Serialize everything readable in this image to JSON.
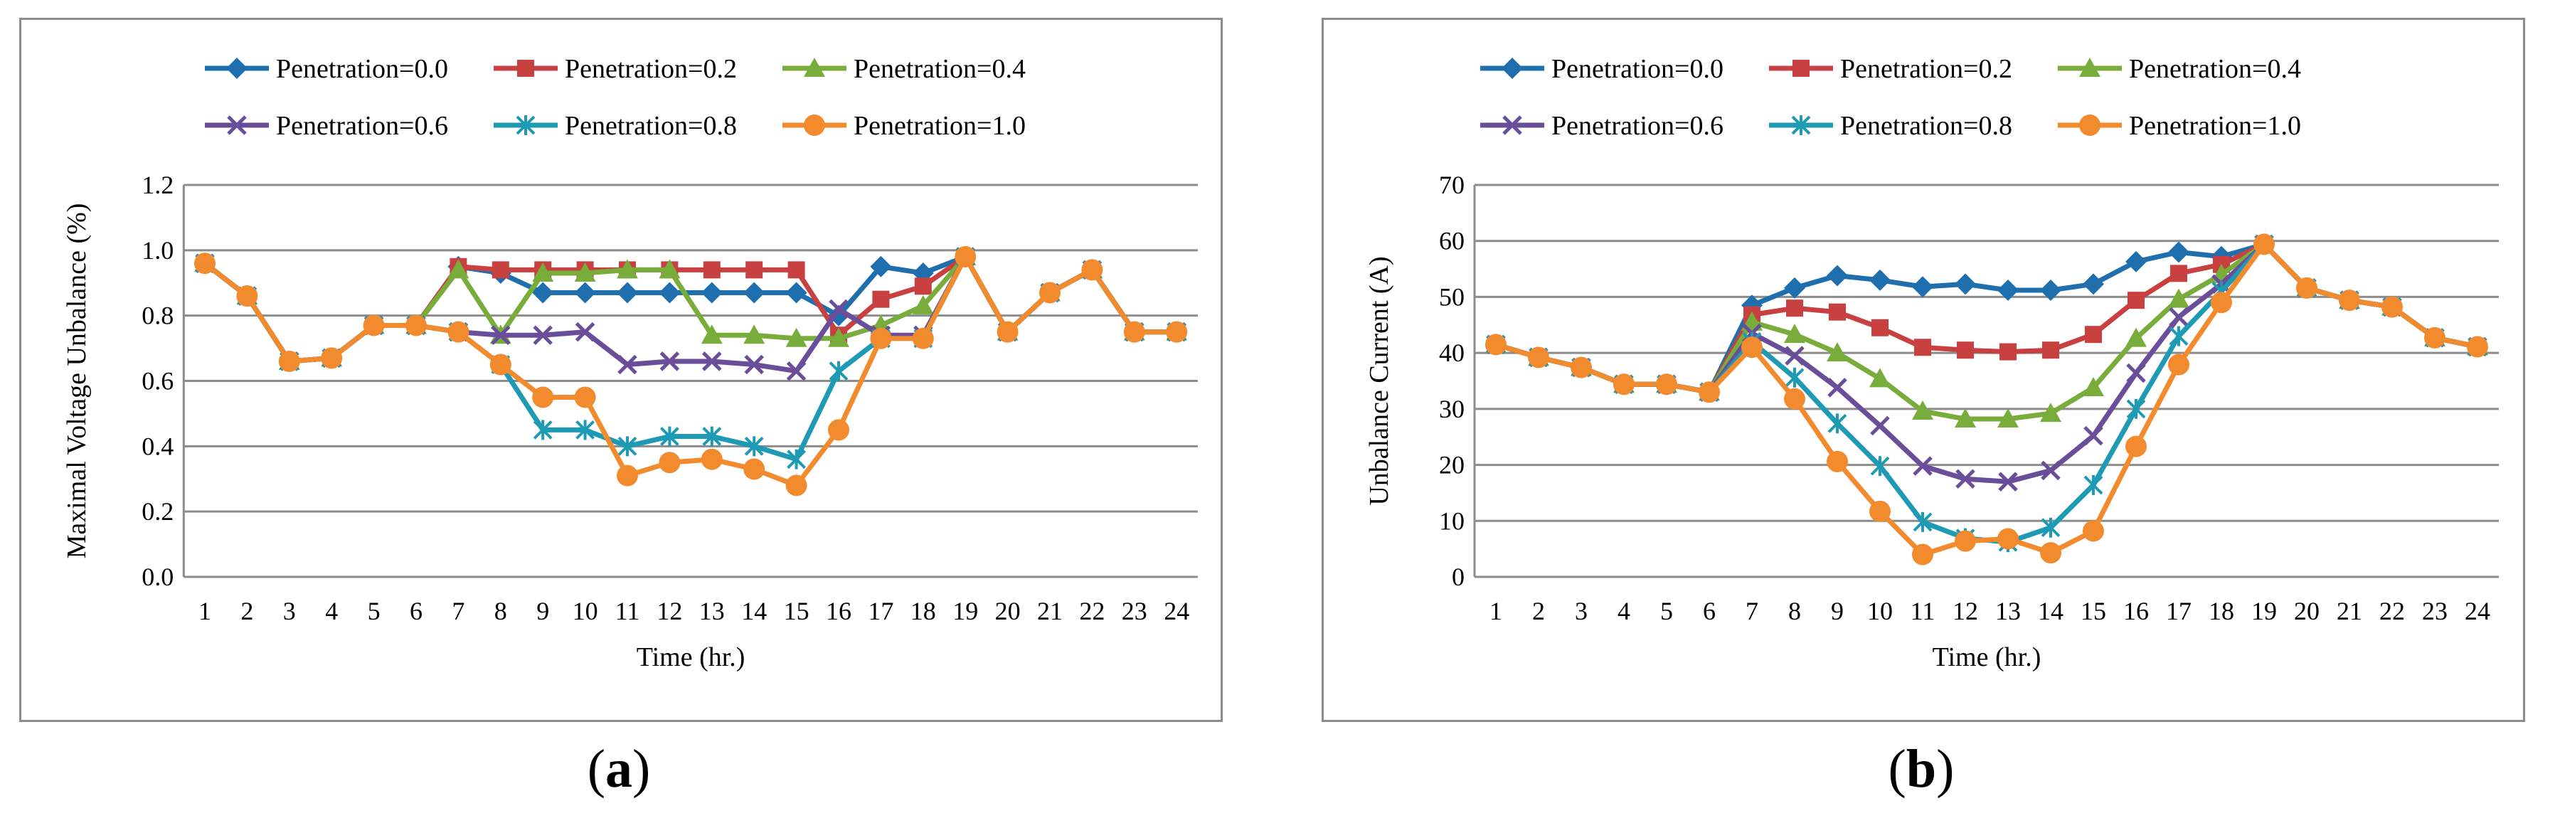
{
  "colors": {
    "p00": "#1f6fae",
    "p02": "#c94040",
    "p04": "#78ad3c",
    "p06": "#6b4e9a",
    "p08": "#1e9ab5",
    "p10": "#f28a2e",
    "grid": "#8c8c8c",
    "axis": "#8c8c8c"
  },
  "captions": {
    "a": "a",
    "b": "b"
  },
  "chart_data": [
    {
      "type": "line",
      "panel": "a",
      "xlabel": "Time (hr.)",
      "ylabel": "Maximal Voltage Unbalance (%)",
      "ylim": [
        0,
        1.2
      ],
      "yticks": [
        "0.0",
        "0.2",
        "0.4",
        "0.6",
        "0.8",
        "1.0",
        "1.2"
      ],
      "grid": true,
      "legend_position": "top",
      "x": [
        1,
        2,
        3,
        4,
        5,
        6,
        7,
        8,
        9,
        10,
        11,
        12,
        13,
        14,
        15,
        16,
        17,
        18,
        19,
        20,
        21,
        22,
        23,
        24
      ],
      "series": [
        {
          "name": "Penetration=0.0",
          "marker": "diamond",
          "color": "p00",
          "values": [
            0.96,
            0.86,
            0.66,
            0.67,
            0.77,
            0.77,
            0.95,
            0.93,
            0.87,
            0.87,
            0.87,
            0.87,
            0.87,
            0.87,
            0.87,
            0.8,
            0.95,
            0.93,
            0.98,
            0.75,
            0.87,
            0.94,
            0.75,
            0.75
          ]
        },
        {
          "name": "Penetration=0.2",
          "marker": "square",
          "color": "p02",
          "values": [
            0.96,
            0.86,
            0.66,
            0.67,
            0.77,
            0.77,
            0.95,
            0.94,
            0.94,
            0.94,
            0.94,
            0.94,
            0.94,
            0.94,
            0.94,
            0.74,
            0.85,
            0.89,
            0.98,
            0.75,
            0.87,
            0.94,
            0.75,
            0.75
          ]
        },
        {
          "name": "Penetration=0.4",
          "marker": "triangle",
          "color": "p04",
          "values": [
            0.96,
            0.86,
            0.66,
            0.67,
            0.77,
            0.77,
            0.94,
            0.74,
            0.93,
            0.93,
            0.94,
            0.94,
            0.74,
            0.74,
            0.73,
            0.73,
            0.77,
            0.83,
            0.98,
            0.75,
            0.87,
            0.94,
            0.75,
            0.75
          ]
        },
        {
          "name": "Penetration=0.6",
          "marker": "x",
          "color": "p06",
          "values": [
            0.96,
            0.86,
            0.66,
            0.67,
            0.77,
            0.77,
            0.75,
            0.74,
            0.74,
            0.75,
            0.65,
            0.66,
            0.66,
            0.65,
            0.63,
            0.82,
            0.74,
            0.74,
            0.98,
            0.75,
            0.87,
            0.94,
            0.75,
            0.75
          ]
        },
        {
          "name": "Penetration=0.8",
          "marker": "star",
          "color": "p08",
          "values": [
            0.96,
            0.86,
            0.66,
            0.67,
            0.77,
            0.77,
            0.75,
            0.65,
            0.45,
            0.45,
            0.4,
            0.43,
            0.43,
            0.4,
            0.36,
            0.63,
            0.73,
            0.73,
            0.98,
            0.75,
            0.87,
            0.94,
            0.75,
            0.75
          ]
        },
        {
          "name": "Penetration=1.0",
          "marker": "circle",
          "color": "p10",
          "values": [
            0.96,
            0.86,
            0.66,
            0.67,
            0.77,
            0.77,
            0.75,
            0.65,
            0.55,
            0.55,
            0.31,
            0.35,
            0.36,
            0.33,
            0.28,
            0.45,
            0.73,
            0.73,
            0.98,
            0.75,
            0.87,
            0.94,
            0.75,
            0.75
          ]
        }
      ]
    },
    {
      "type": "line",
      "panel": "b",
      "xlabel": "Time (hr.)",
      "ylabel": "Unbalance Current (A)",
      "ylim": [
        0,
        70
      ],
      "yticks": [
        "0",
        "10",
        "20",
        "30",
        "40",
        "50",
        "60",
        "70"
      ],
      "grid": true,
      "legend_position": "top",
      "x": [
        1,
        2,
        3,
        4,
        5,
        6,
        7,
        8,
        9,
        10,
        11,
        12,
        13,
        14,
        15,
        16,
        17,
        18,
        19,
        20,
        21,
        22,
        23,
        24
      ],
      "series": [
        {
          "name": "Penetration=0.0",
          "marker": "diamond",
          "color": "p00",
          "values": [
            41.5,
            39.2,
            37.4,
            34.4,
            34.4,
            33.0,
            48.5,
            51.6,
            53.8,
            53.0,
            51.8,
            52.3,
            51.2,
            51.2,
            52.3,
            56.3,
            58.0,
            57.2,
            59.4,
            51.6,
            49.4,
            48.2,
            42.7,
            41.1
          ]
        },
        {
          "name": "Penetration=0.2",
          "marker": "square",
          "color": "p02",
          "values": [
            41.5,
            39.2,
            37.4,
            34.4,
            34.4,
            33.0,
            46.8,
            48.0,
            47.3,
            44.5,
            41.0,
            40.5,
            40.2,
            40.5,
            43.3,
            49.4,
            54.2,
            55.8,
            59.4,
            51.6,
            49.4,
            48.2,
            42.7,
            41.1
          ]
        },
        {
          "name": "Penetration=0.4",
          "marker": "triangle",
          "color": "p04",
          "values": [
            41.5,
            39.2,
            37.4,
            34.4,
            34.4,
            33.0,
            45.5,
            43.3,
            40.0,
            35.4,
            29.6,
            28.2,
            28.2,
            29.2,
            33.8,
            42.6,
            49.6,
            54.0,
            59.4,
            51.6,
            49.4,
            48.2,
            42.7,
            41.1
          ]
        },
        {
          "name": "Penetration=0.6",
          "marker": "x",
          "color": "p06",
          "values": [
            41.5,
            39.2,
            37.4,
            34.4,
            34.4,
            33.0,
            43.5,
            39.5,
            33.8,
            27.0,
            19.8,
            17.5,
            17.0,
            19.0,
            25.2,
            36.4,
            46.4,
            52.3,
            59.4,
            51.6,
            49.4,
            48.2,
            42.7,
            41.1
          ]
        },
        {
          "name": "Penetration=0.8",
          "marker": "star",
          "color": "p08",
          "values": [
            41.5,
            39.2,
            37.4,
            34.4,
            34.4,
            33.0,
            42.0,
            35.6,
            27.4,
            19.8,
            9.8,
            6.9,
            6.2,
            8.8,
            16.4,
            30.0,
            43.0,
            51.0,
            59.4,
            51.6,
            49.4,
            48.2,
            42.7,
            41.1
          ]
        },
        {
          "name": "Penetration=1.0",
          "marker": "circle",
          "color": "p10",
          "values": [
            41.5,
            39.2,
            37.4,
            34.4,
            34.4,
            33.0,
            41.0,
            31.8,
            20.6,
            11.7,
            4.0,
            6.4,
            6.8,
            4.3,
            8.2,
            23.3,
            37.9,
            49.0,
            59.4,
            51.6,
            49.4,
            48.2,
            42.7,
            41.1
          ]
        }
      ]
    }
  ]
}
